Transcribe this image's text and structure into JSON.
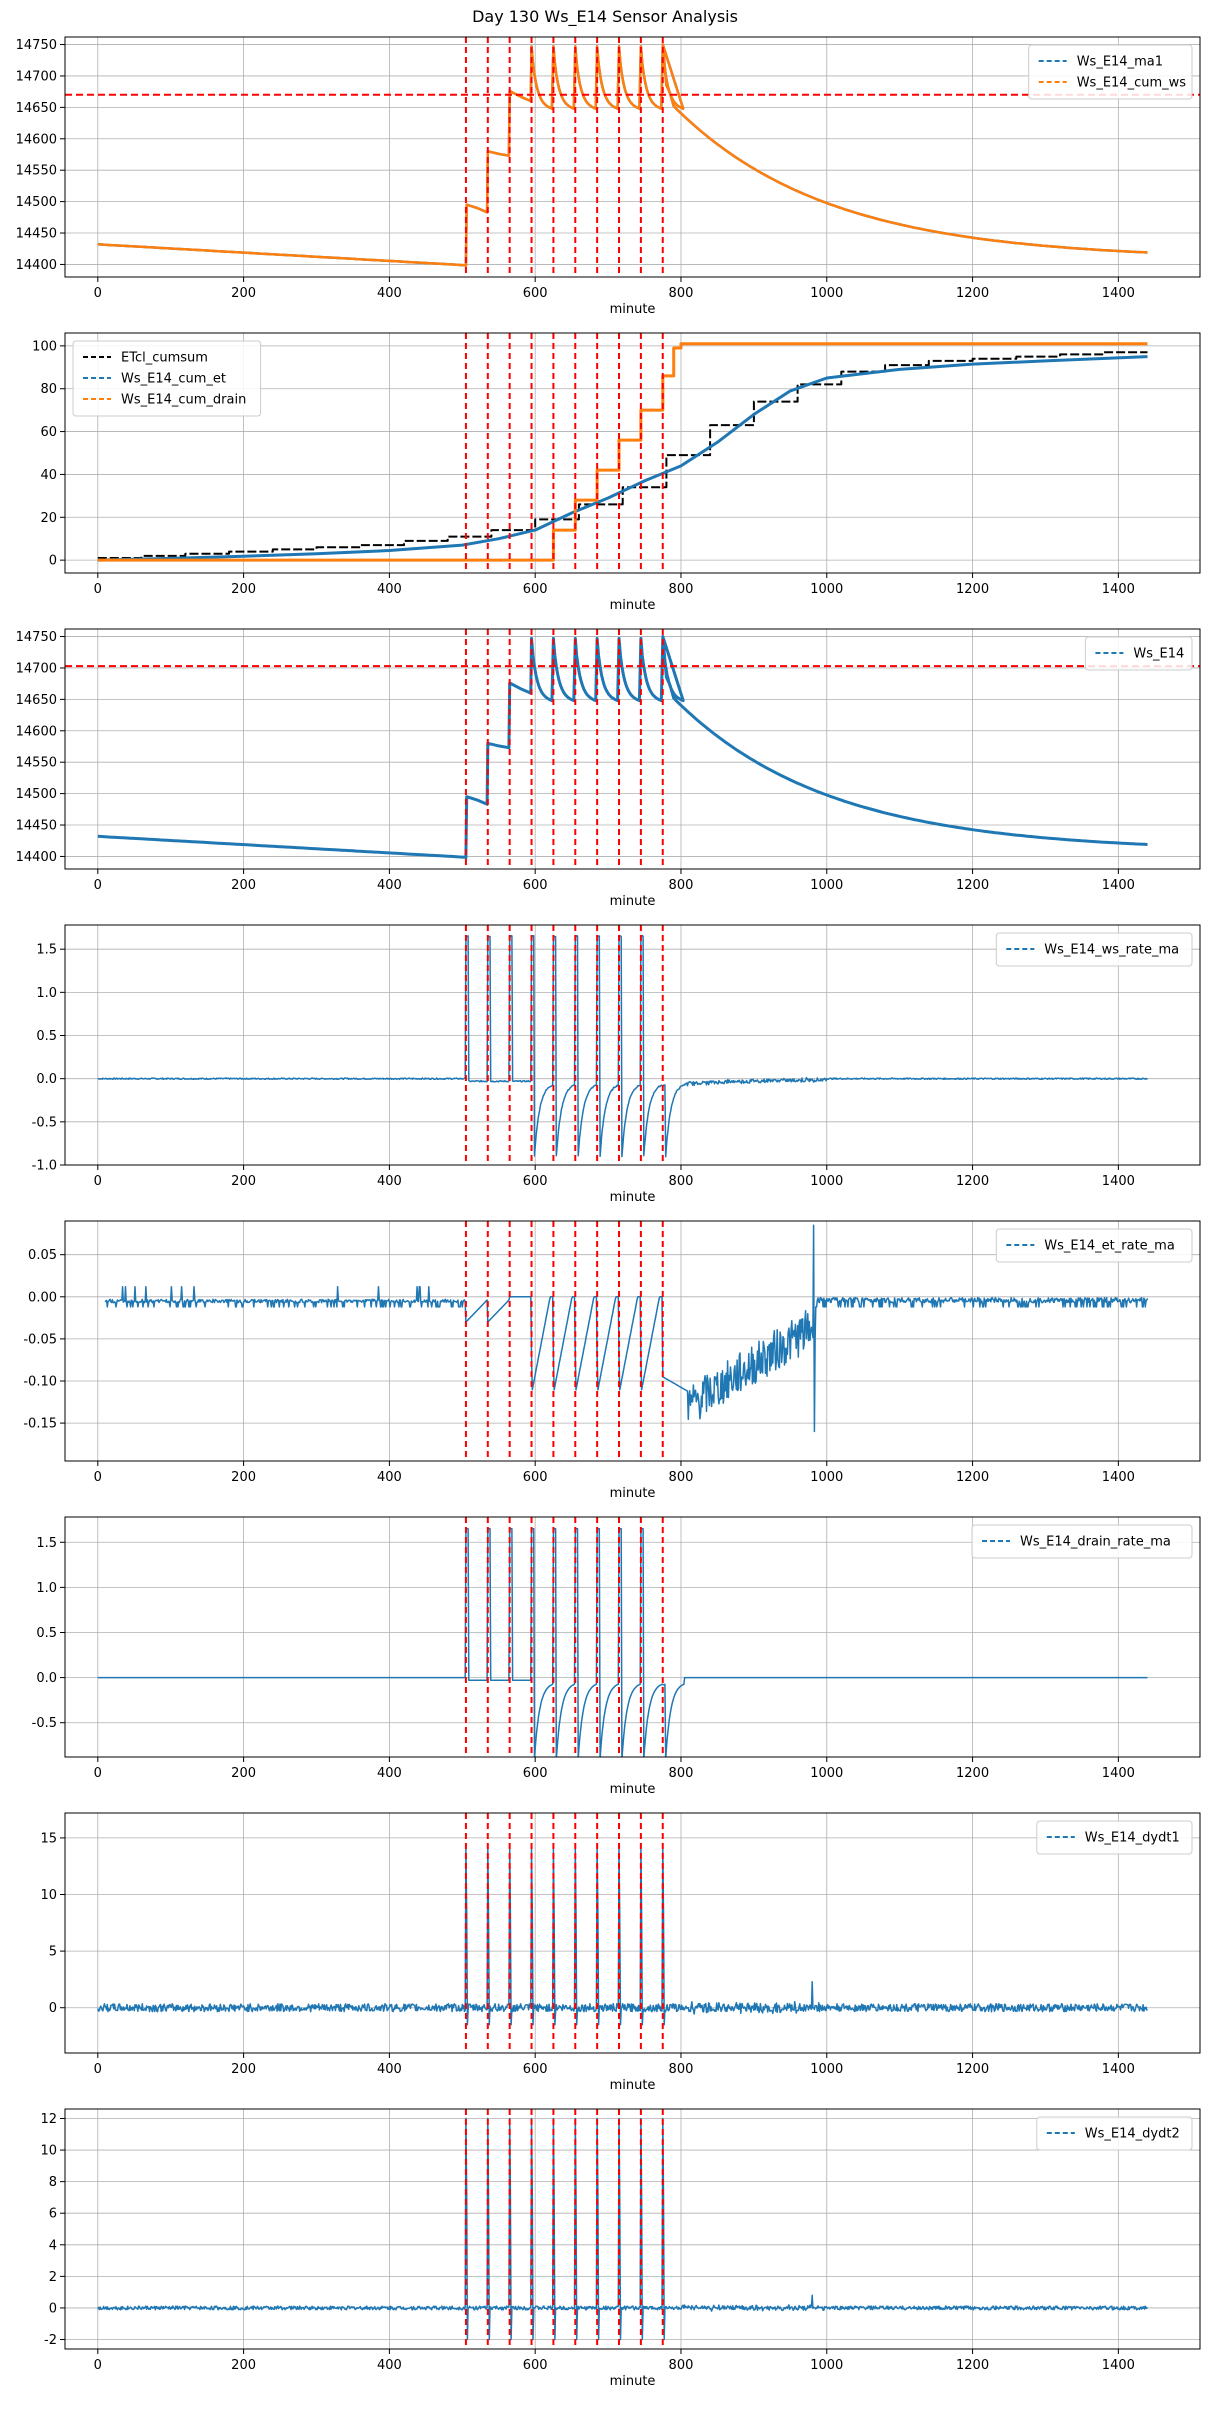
{
  "title": "Day 130 Ws_E14 Sensor Analysis",
  "colors": {
    "blue": "#1f77b4",
    "orange": "#ff7f0e",
    "black": "#000000",
    "red": "#ff0000",
    "grid": "#b0b0b0"
  },
  "event_minutes": [
    505,
    535,
    565,
    595,
    625,
    655,
    685,
    715,
    745,
    775
  ],
  "chart_data": [
    {
      "type": "line",
      "xlabel": "minute",
      "xlim": [
        -45,
        1512
      ],
      "ylim": [
        14380,
        14762
      ],
      "xticks": [
        0,
        200,
        400,
        600,
        800,
        1000,
        1200,
        1400
      ],
      "yticks": [
        14400,
        14450,
        14500,
        14550,
        14600,
        14650,
        14700,
        14750
      ],
      "hline": 14670,
      "legend": {
        "position": "upper-right",
        "entries": [
          "Ws_E14_ma1",
          "Ws_E14_cum_ws"
        ]
      },
      "series": [
        {
          "name": "Ws_E14_ma1",
          "color": "#1f77b4",
          "width": 2.5,
          "kind": "weight"
        },
        {
          "name": "Ws_E14_cum_ws",
          "color": "#ff7f0e",
          "width": 2.5,
          "kind": "weight"
        }
      ]
    },
    {
      "type": "line",
      "xlabel": "minute",
      "xlim": [
        -45,
        1512
      ],
      "ylim": [
        -6,
        106
      ],
      "xticks": [
        0,
        200,
        400,
        600,
        800,
        1000,
        1200,
        1400
      ],
      "yticks": [
        0,
        20,
        40,
        60,
        80,
        100
      ],
      "legend": {
        "position": "upper-left",
        "entries": [
          "ETcl_cumsum",
          "Ws_E14_cum_et",
          "Ws_E14_cum_drain"
        ]
      },
      "series": [
        {
          "name": "ETcl_cumsum",
          "color": "#000000",
          "width": 2,
          "kind": "step",
          "x": [
            0,
            60,
            120,
            180,
            240,
            300,
            360,
            420,
            480,
            540,
            600,
            660,
            720,
            780,
            840,
            900,
            960,
            1020,
            1080,
            1140,
            1200,
            1260,
            1320,
            1380,
            1440
          ],
          "y": [
            1,
            2,
            3,
            4,
            5,
            6,
            7,
            9,
            11,
            14,
            19,
            26,
            34,
            49,
            63,
            74,
            82,
            88,
            91,
            93,
            94,
            95,
            96,
            97,
            97
          ]
        },
        {
          "name": "Ws_E14_cum_et",
          "color": "#1f77b4",
          "width": 3,
          "kind": "smooth",
          "x": [
            0,
            100,
            200,
            300,
            400,
            500,
            550,
            600,
            650,
            700,
            750,
            800,
            850,
            900,
            950,
            1000,
            1100,
            1200,
            1300,
            1440
          ],
          "y": [
            0,
            0.8,
            1.8,
            3,
            4.5,
            7,
            10,
            14,
            22,
            29,
            37,
            44,
            55,
            68,
            79,
            85,
            89,
            91.5,
            93,
            95
          ]
        },
        {
          "name": "Ws_E14_cum_drain",
          "color": "#ff7f0e",
          "width": 3,
          "kind": "step",
          "x": [
            0,
            595,
            625,
            655,
            685,
            715,
            745,
            775,
            790,
            800,
            1440
          ],
          "y": [
            0,
            0,
            14,
            28,
            42,
            56,
            70,
            86,
            99,
            101,
            101
          ]
        }
      ]
    },
    {
      "type": "line",
      "xlabel": "minute",
      "xlim": [
        -45,
        1512
      ],
      "ylim": [
        14380,
        14762
      ],
      "xticks": [
        0,
        200,
        400,
        600,
        800,
        1000,
        1200,
        1400
      ],
      "yticks": [
        14400,
        14450,
        14500,
        14550,
        14600,
        14650,
        14700,
        14750
      ],
      "hline": 14703,
      "legend": {
        "position": "upper-right",
        "entries": [
          "Ws_E14"
        ]
      },
      "series": [
        {
          "name": "Ws_E14",
          "color": "#1f77b4",
          "width": 3,
          "kind": "weight"
        }
      ]
    },
    {
      "type": "line",
      "xlabel": "minute",
      "xlim": [
        -45,
        1512
      ],
      "ylim": [
        -1.0,
        1.78
      ],
      "xticks": [
        0,
        200,
        400,
        600,
        800,
        1000,
        1200,
        1400
      ],
      "yticks": [
        -1.0,
        -0.5,
        0.0,
        0.5,
        1.0,
        1.5
      ],
      "ytick_labels": [
        "-1.0",
        "-0.5",
        "0.0",
        "0.5",
        "1.0",
        "1.5"
      ],
      "legend": {
        "position": "upper-right",
        "entries": [
          "Ws_E14_ws_rate_ma"
        ]
      },
      "series": [
        {
          "name": "Ws_E14_ws_rate_ma",
          "color": "#1f77b4",
          "width": 1.5,
          "kind": "rate",
          "peak": 1.65,
          "trough": -0.85,
          "noise": 0.015
        }
      ]
    },
    {
      "type": "line",
      "xlabel": "minute",
      "xlim": [
        -45,
        1512
      ],
      "ylim": [
        -0.195,
        0.09
      ],
      "xticks": [
        0,
        200,
        400,
        600,
        800,
        1000,
        1200,
        1400
      ],
      "yticks": [
        -0.15,
        -0.1,
        -0.05,
        0.0,
        0.05
      ],
      "ytick_labels": [
        "-0.15",
        "-0.10",
        "-0.05",
        "0.00",
        "0.05"
      ],
      "legend": {
        "position": "upper-right",
        "entries": [
          "Ws_E14_et_rate_ma"
        ]
      },
      "series": [
        {
          "name": "Ws_E14_et_rate_ma",
          "color": "#1f77b4",
          "width": 1.5,
          "kind": "et"
        }
      ]
    },
    {
      "type": "line",
      "xlabel": "minute",
      "xlim": [
        -45,
        1512
      ],
      "ylim": [
        -0.88,
        1.78
      ],
      "xticks": [
        0,
        200,
        400,
        600,
        800,
        1000,
        1200,
        1400
      ],
      "yticks": [
        -0.5,
        0.0,
        0.5,
        1.0,
        1.5
      ],
      "ytick_labels": [
        "-0.5",
        "0.0",
        "0.5",
        "1.0",
        "1.5"
      ],
      "legend": {
        "position": "upper-right",
        "entries": [
          "Ws_E14_drain_rate_ma"
        ]
      },
      "series": [
        {
          "name": "Ws_E14_drain_rate_ma",
          "color": "#1f77b4",
          "width": 1.5,
          "kind": "rate",
          "peak": 1.65,
          "trough": -0.85,
          "noise": 0.0,
          "flat_after": 810
        }
      ]
    },
    {
      "type": "line",
      "xlabel": "minute",
      "xlim": [
        -45,
        1512
      ],
      "ylim": [
        -4,
        17.2
      ],
      "xticks": [
        0,
        200,
        400,
        600,
        800,
        1000,
        1200,
        1400
      ],
      "yticks": [
        0,
        5,
        10,
        15
      ],
      "legend": {
        "position": "upper-right",
        "entries": [
          "Ws_E14_dydt1"
        ]
      },
      "series": [
        {
          "name": "Ws_E14_dydt1",
          "color": "#1f77b4",
          "width": 1.5,
          "kind": "dydt",
          "peak": 14,
          "trough": -1.5,
          "noise": 0.35,
          "spike_at": 980,
          "spike": 2.3
        }
      ]
    },
    {
      "type": "line",
      "xlabel": "minute",
      "xlim": [
        -45,
        1512
      ],
      "ylim": [
        -2.6,
        12.6
      ],
      "xticks": [
        0,
        200,
        400,
        600,
        800,
        1000,
        1200,
        1400
      ],
      "yticks": [
        -2,
        0,
        2,
        4,
        6,
        8,
        10,
        12
      ],
      "legend": {
        "position": "upper-right",
        "entries": [
          "Ws_E14_dydt2"
        ]
      },
      "series": [
        {
          "name": "Ws_E14_dydt2",
          "color": "#1f77b4",
          "width": 1.5,
          "kind": "dydt",
          "peak": 12,
          "trough": -2,
          "noise": 0.12,
          "spike_at": 980,
          "spike": 0.8
        }
      ]
    }
  ]
}
